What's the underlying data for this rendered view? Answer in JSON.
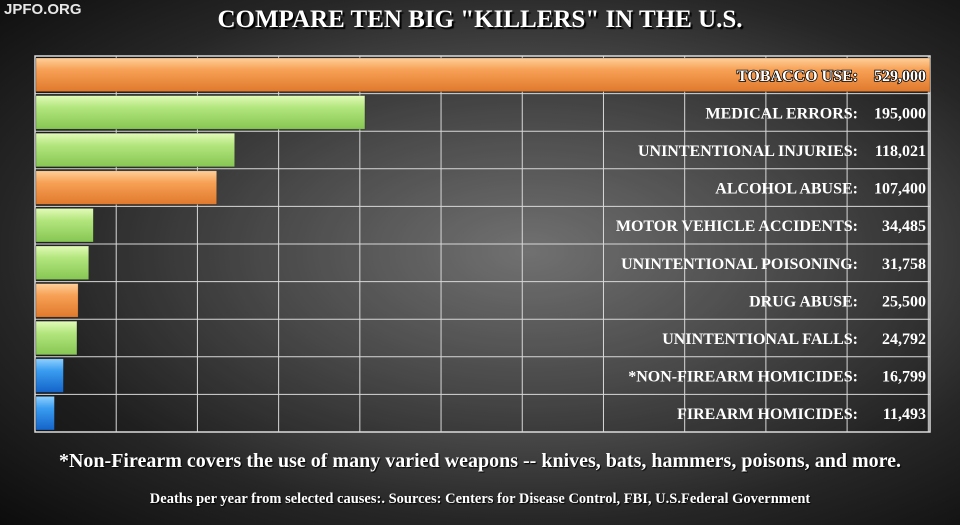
{
  "watermark": "JPFO.ORG",
  "footnote": "*Non-Firearm covers the use of many varied weapons -- knives, bats, hammers, poisons, and more.",
  "source": "Deaths per year from selected causes:.  Sources:  Centers for Disease Control, FBI, U.S.Federal Government",
  "colors": {
    "orange": "#f39a4a",
    "green": "#a9e27a",
    "blue": "#2f95ef"
  },
  "chart_data": {
    "type": "bar",
    "orientation": "horizontal",
    "title": "COMPARE TEN BIG \"KILLERS\" IN THE U.S.",
    "xlabel": "",
    "ylabel": "",
    "xlim": [
      0,
      529000
    ],
    "grid": true,
    "categories": [
      "TOBACCO USE:",
      "MEDICAL ERRORS:",
      "UNINTENTIONAL INJURIES:",
      "ALCOHOL ABUSE:",
      "MOTOR VEHICLE ACCIDENTS:",
      "UNINTENTIONAL POISONING:",
      "DRUG ABUSE:",
      "UNINTENTIONAL FALLS:",
      "*NON-FIREARM HOMICIDES:",
      "FIREARM HOMICIDES:"
    ],
    "values": [
      529000,
      195000,
      118021,
      107400,
      34485,
      31758,
      25500,
      24792,
      16799,
      11493
    ],
    "value_labels": [
      "529,000",
      "195,000",
      "118,021",
      "107,400",
      "34,485",
      "31,758",
      "25,500",
      "24,792",
      "16,799",
      "11,493"
    ],
    "bar_colors": [
      "orange",
      "green",
      "green",
      "orange",
      "green",
      "green",
      "orange",
      "green",
      "blue",
      "blue"
    ]
  }
}
